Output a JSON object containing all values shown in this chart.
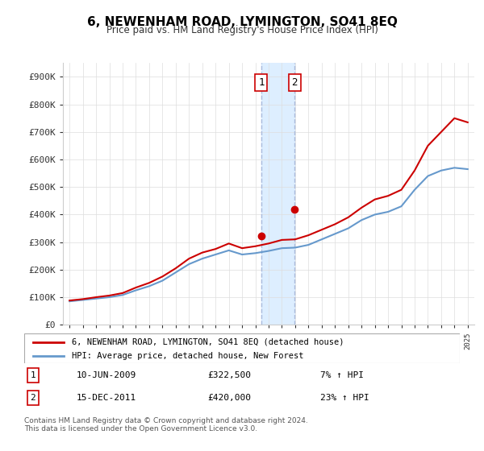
{
  "title": "6, NEWENHAM ROAD, LYMINGTON, SO41 8EQ",
  "subtitle": "Price paid vs. HM Land Registry's House Price Index (HPI)",
  "ylabel_ticks": [
    "£0",
    "£100K",
    "£200K",
    "£300K",
    "£400K",
    "£500K",
    "£600K",
    "£700K",
    "£800K",
    "£900K"
  ],
  "ytick_values": [
    0,
    100000,
    200000,
    300000,
    400000,
    500000,
    600000,
    700000,
    800000,
    900000
  ],
  "ylim": [
    0,
    950000
  ],
  "legend_line1": "6, NEWENHAM ROAD, LYMINGTON, SO41 8EQ (detached house)",
  "legend_line2": "HPI: Average price, detached house, New Forest",
  "transaction1_date": "10-JUN-2009",
  "transaction1_price": "£322,500",
  "transaction1_hpi": "7% ↑ HPI",
  "transaction2_date": "15-DEC-2011",
  "transaction2_price": "£420,000",
  "transaction2_hpi": "23% ↑ HPI",
  "footer": "Contains HM Land Registry data © Crown copyright and database right 2024.\nThis data is licensed under the Open Government Licence v3.0.",
  "hpi_color": "#6699cc",
  "price_color": "#cc0000",
  "marker_color": "#cc0000",
  "shade_color": "#ddeeff",
  "background_color": "#ffffff",
  "grid_color": "#dddddd",
  "transaction1_x": 2009.44,
  "transaction2_x": 2011.96,
  "hpi_years": [
    1995,
    1996,
    1997,
    1998,
    1999,
    2000,
    2001,
    2002,
    2003,
    2004,
    2005,
    2006,
    2007,
    2008,
    2009,
    2010,
    2011,
    2012,
    2013,
    2014,
    2015,
    2016,
    2017,
    2018,
    2019,
    2020,
    2021,
    2022,
    2023,
    2024,
    2025
  ],
  "hpi_values": [
    85000,
    90000,
    95000,
    100000,
    108000,
    125000,
    140000,
    160000,
    190000,
    220000,
    240000,
    255000,
    270000,
    255000,
    260000,
    268000,
    278000,
    280000,
    290000,
    310000,
    330000,
    350000,
    380000,
    400000,
    410000,
    430000,
    490000,
    540000,
    560000,
    570000,
    565000
  ],
  "price_years": [
    1995,
    1996,
    1997,
    1998,
    1999,
    2000,
    2001,
    2002,
    2003,
    2004,
    2005,
    2006,
    2007,
    2008,
    2009,
    2010,
    2011,
    2012,
    2013,
    2014,
    2015,
    2016,
    2017,
    2018,
    2019,
    2020,
    2021,
    2022,
    2023,
    2024,
    2025
  ],
  "price_values": [
    88000,
    93000,
    100000,
    106000,
    115000,
    135000,
    152000,
    175000,
    205000,
    240000,
    262000,
    275000,
    295000,
    278000,
    285000,
    295000,
    308000,
    310000,
    325000,
    345000,
    365000,
    390000,
    425000,
    455000,
    468000,
    490000,
    560000,
    650000,
    700000,
    750000,
    735000
  ]
}
